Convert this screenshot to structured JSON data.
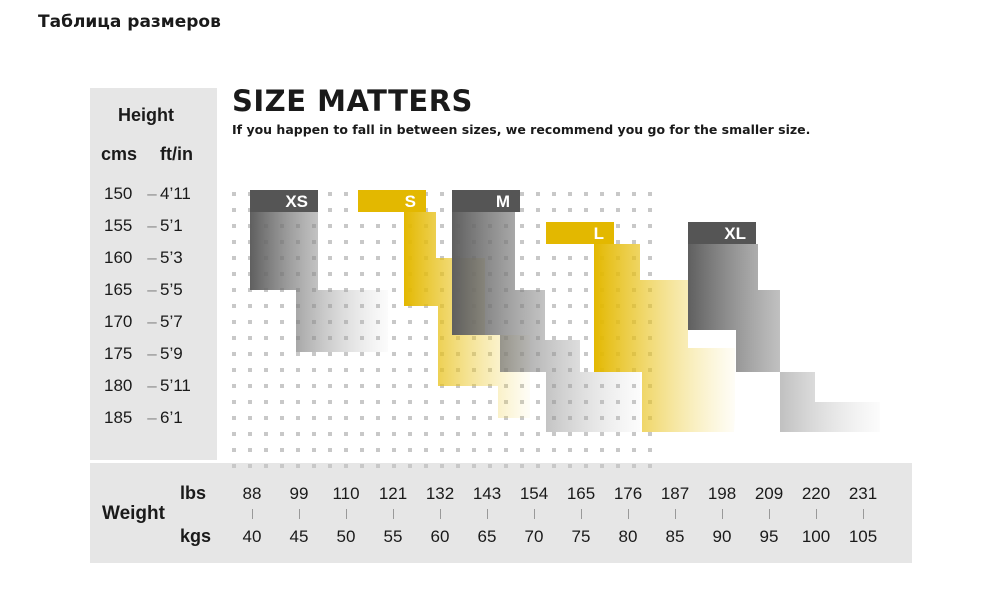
{
  "page_title": "Таблица размеров",
  "chart_data": {
    "type": "table",
    "title": "SIZE MATTERS",
    "subtitle": "If you happen to fall in between sizes, we recommend you go for the smaller size.",
    "height_axis": {
      "heading": "Height",
      "unit_cm": "cms",
      "unit_ftin": "ft/in",
      "rows": [
        {
          "cm": "150",
          "ftin": "4’11"
        },
        {
          "cm": "155",
          "ftin": "5’1"
        },
        {
          "cm": "160",
          "ftin": "5’3"
        },
        {
          "cm": "165",
          "ftin": "5’5"
        },
        {
          "cm": "170",
          "ftin": "5’7"
        },
        {
          "cm": "175",
          "ftin": "5’9"
        },
        {
          "cm": "180",
          "ftin": "5’11"
        },
        {
          "cm": "185",
          "ftin": "6’1"
        }
      ]
    },
    "weight_axis": {
      "heading": "Weight",
      "unit_lbs": "lbs",
      "unit_kgs": "kgs",
      "lbs": [
        "88",
        "99",
        "110",
        "121",
        "132",
        "143",
        "154",
        "165",
        "176",
        "187",
        "198",
        "209",
        "220",
        "231"
      ],
      "kgs": [
        "40",
        "45",
        "50",
        "55",
        "60",
        "65",
        "70",
        "75",
        "80",
        "85",
        "90",
        "95",
        "100",
        "105"
      ]
    },
    "sizes": [
      {
        "label": "XS",
        "color": "#555555"
      },
      {
        "label": "S",
        "color": "#e3b800"
      },
      {
        "label": "M",
        "color": "#555555"
      },
      {
        "label": "L",
        "color": "#e3b800"
      },
      {
        "label": "XL",
        "color": "#555555"
      }
    ]
  }
}
